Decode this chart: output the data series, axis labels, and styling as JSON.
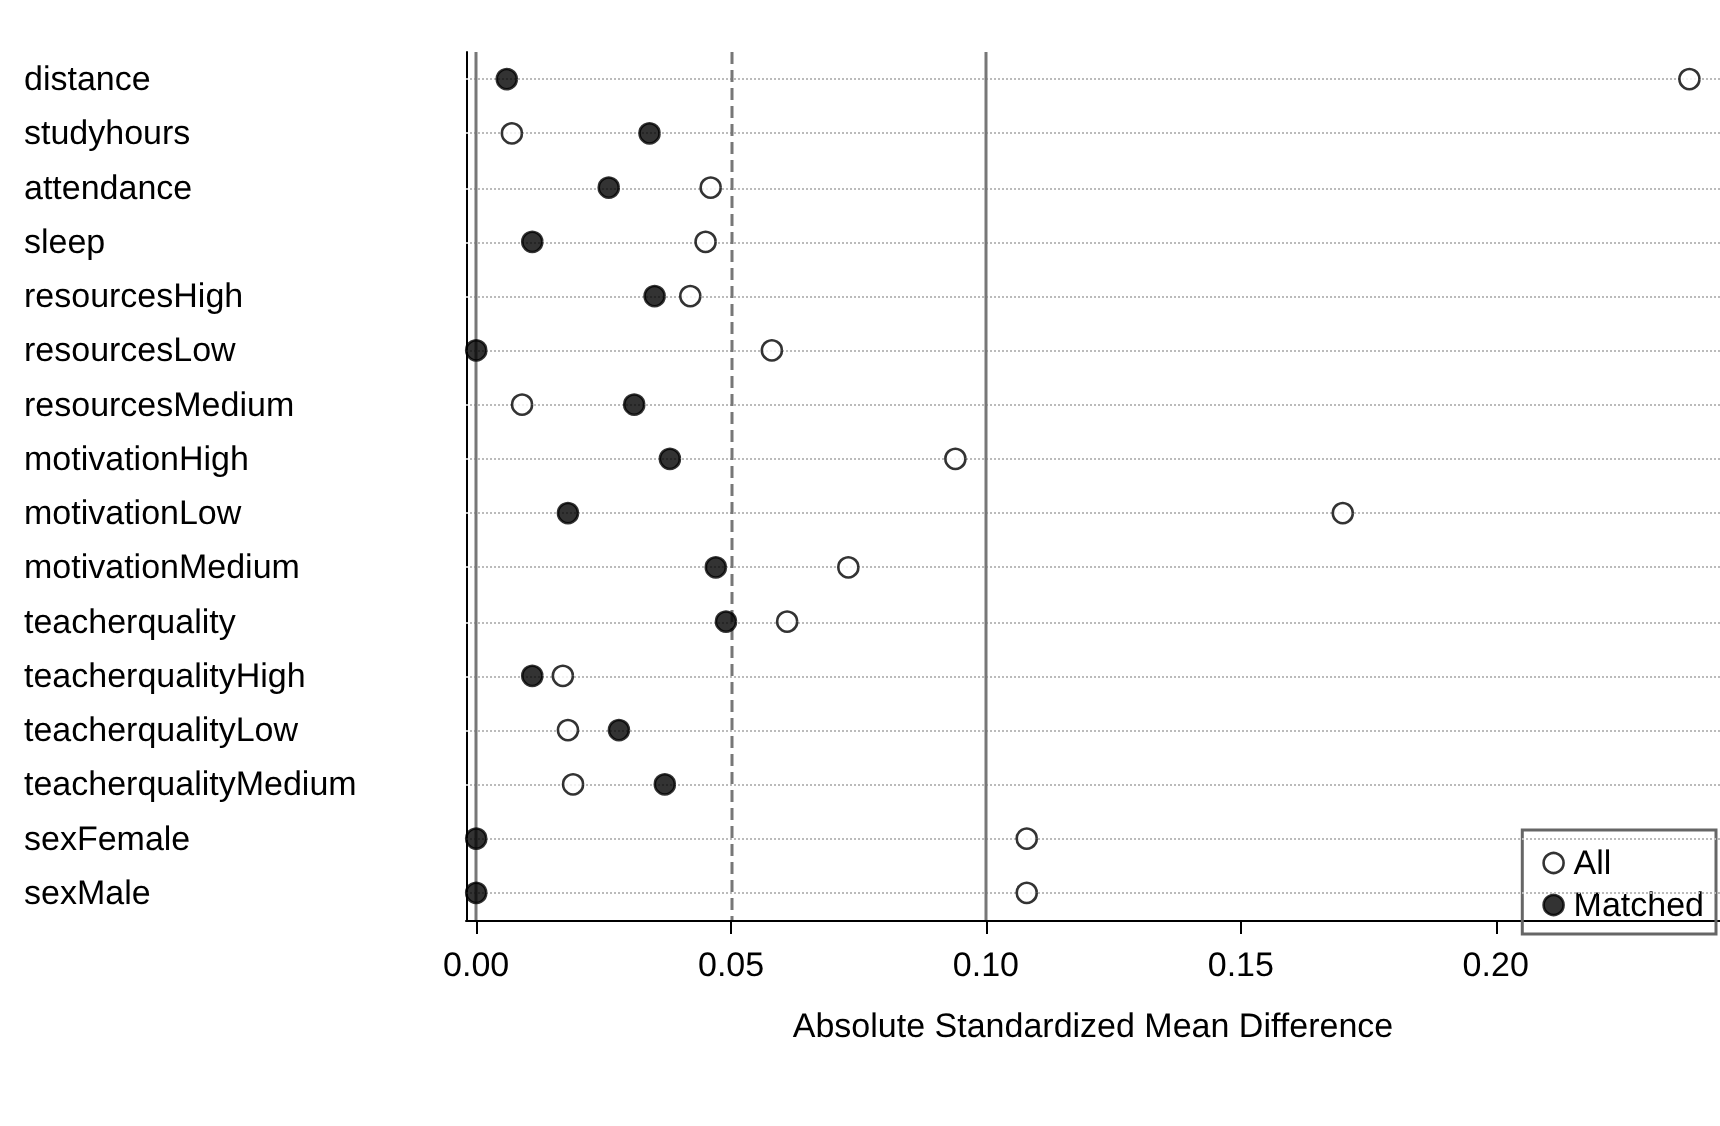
{
  "chart_data": {
    "type": "scatter",
    "xlabel": "Absolute Standardized Mean Difference",
    "categories": [
      "distance",
      "studyhours",
      "attendance",
      "sleep",
      "resourcesHigh",
      "resourcesLow",
      "resourcesMedium",
      "motivationHigh",
      "motivationLow",
      "motivationMedium",
      "teacherquality",
      "teacherqualityHigh",
      "teacherqualityLow",
      "teacherqualityMedium",
      "sexFemale",
      "sexMale"
    ],
    "series": [
      {
        "name": "All",
        "color": "#ffffff",
        "values": [
          0.238,
          0.007,
          0.046,
          0.045,
          0.042,
          0.058,
          0.009,
          0.094,
          0.17,
          0.073,
          0.061,
          0.017,
          0.018,
          0.019,
          0.108,
          0.108
        ]
      },
      {
        "name": "Matched",
        "color": "#000000",
        "values": [
          0.006,
          0.034,
          0.026,
          0.011,
          0.035,
          0.0,
          0.031,
          0.038,
          0.018,
          0.047,
          0.049,
          0.011,
          0.028,
          0.037,
          0.0,
          0.0
        ]
      }
    ],
    "xlim": [
      -0.002,
      0.244
    ],
    "xticks": [
      {
        "value": 0,
        "label": "0.00"
      },
      {
        "value": 0.05,
        "label": "0.05"
      },
      {
        "value": 0.1,
        "label": "0.10"
      },
      {
        "value": 0.15,
        "label": "0.15"
      },
      {
        "value": 0.2,
        "label": "0.20"
      }
    ],
    "ref_lines": [
      {
        "axis": "x",
        "value": 0,
        "color": "#777777",
        "line_style": "solid"
      },
      {
        "axis": "x",
        "value": 0.05,
        "color": "#777777",
        "line_style": "dashed"
      },
      {
        "axis": "x",
        "value": 0.1,
        "color": "#777777",
        "line_style": "solid"
      }
    ],
    "orientation": "horizontal",
    "grid": "y",
    "legend": "bottom right",
    "marker": "circle"
  }
}
